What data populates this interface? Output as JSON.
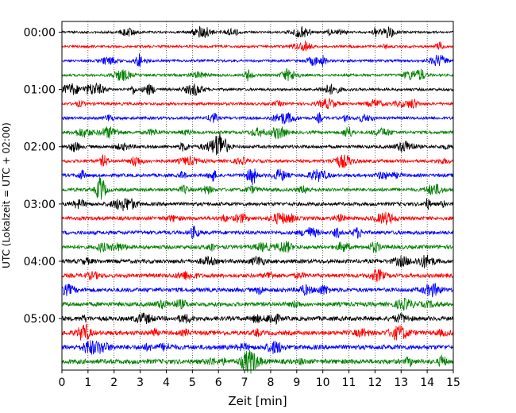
{
  "chart_data": {
    "type": "line",
    "title": "",
    "xlabel": "Zeit  [min]",
    "ylabel": "UTC (Lokalzeit = UTC + 02:00)",
    "xlim": [
      0,
      15
    ],
    "x_ticks": [
      "0",
      "1",
      "2",
      "3",
      "4",
      "5",
      "6",
      "7",
      "8",
      "9",
      "10",
      "11",
      "12",
      "13",
      "14",
      "15"
    ],
    "y_ticks": [
      "00:00",
      "01:00",
      "02:00",
      "03:00",
      "04:00",
      "05:00"
    ],
    "y_tick_rows": [
      0,
      4,
      8,
      12,
      16,
      20
    ],
    "trace_count": 24,
    "trace_interval_minutes": 15,
    "trace_colors": [
      "#000000",
      "#ff0000",
      "#0000ff",
      "#008000"
    ],
    "vertical_grid": "dotted",
    "legend": "none"
  }
}
